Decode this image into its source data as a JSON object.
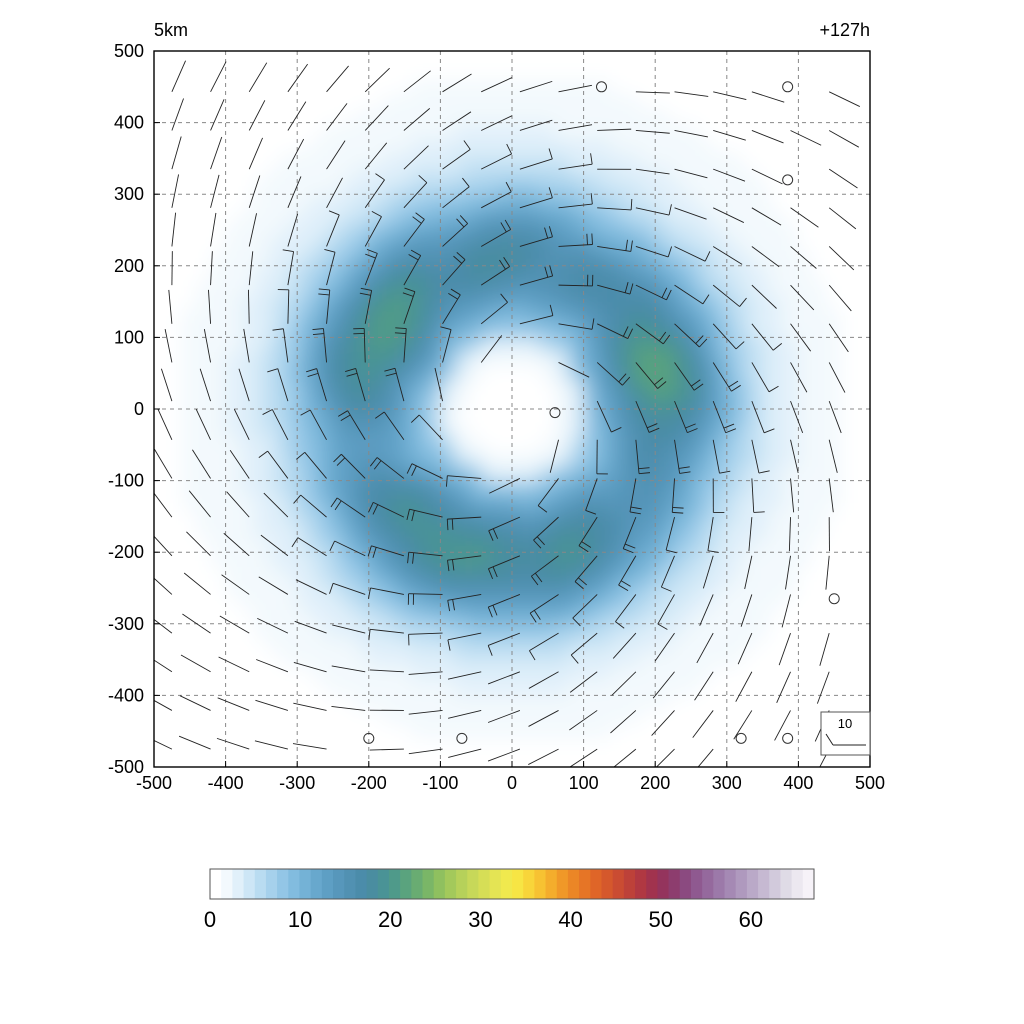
{
  "chart_data": {
    "type": "heatmap",
    "title_left": "5km",
    "title_right": "+127h",
    "xlim": [
      -500,
      500
    ],
    "ylim": [
      -500,
      500
    ],
    "x_ticks": [
      -500,
      -400,
      -300,
      -200,
      -100,
      0,
      100,
      200,
      300,
      400,
      500
    ],
    "y_ticks": [
      -500,
      -400,
      -300,
      -200,
      -100,
      0,
      100,
      200,
      300,
      400,
      500
    ],
    "grid": true,
    "field": {
      "pattern": "annular ring of wind speed around a calm eye",
      "ring_radius": 210,
      "ring_width": 100,
      "peak_value": 18,
      "eye_radius": 100,
      "background_value": 2
    },
    "wind_barbs": {
      "spacing": 54,
      "circulation": "counterclockwise"
    },
    "calm_markers": [
      [
        125,
        450
      ],
      [
        385,
        450
      ],
      [
        385,
        320
      ],
      [
        60,
        -5
      ],
      [
        450,
        -265
      ],
      [
        -200,
        -460
      ],
      [
        -70,
        -460
      ],
      [
        320,
        -460
      ],
      [
        385,
        -460
      ]
    ],
    "reference_barb_label": "10",
    "colorbar": {
      "min": 0,
      "max": 67,
      "tick_labels": [
        "0",
        "10",
        "20",
        "30",
        "40",
        "50",
        "60"
      ],
      "colors": [
        "#ffffff",
        "#f3f9fd",
        "#e1f0fa",
        "#cde6f6",
        "#b9dcf1",
        "#a6d1ec",
        "#93c6e6",
        "#82bcdf",
        "#74b2d6",
        "#68a8cd",
        "#5e9fc4",
        "#5797bb",
        "#5191b2",
        "#4b8caa",
        "#4a8da0",
        "#4a9396",
        "#4f9a8a",
        "#5aa37e",
        "#69ac72",
        "#7ab667",
        "#8fc05f",
        "#a3c95b",
        "#b6d15a",
        "#c7d859",
        "#d6de56",
        "#e4e454",
        "#f0e94e",
        "#f7e544",
        "#f8d53a",
        "#f7c232",
        "#f4ad2c",
        "#f09828",
        "#eb8626",
        "#e67526",
        "#df6528",
        "#d5582c",
        "#ca4c32",
        "#bd4139",
        "#b03842",
        "#a1334e",
        "#94345d",
        "#8d3d6e",
        "#8b4a80",
        "#8f5990",
        "#95699d",
        "#9c79a9",
        "#a589b4",
        "#af99be",
        "#baa9c8",
        "#c6b9d2",
        "#d2cadc",
        "#dfdbe6",
        "#ece8f0",
        "#f6f2f8"
      ]
    }
  }
}
